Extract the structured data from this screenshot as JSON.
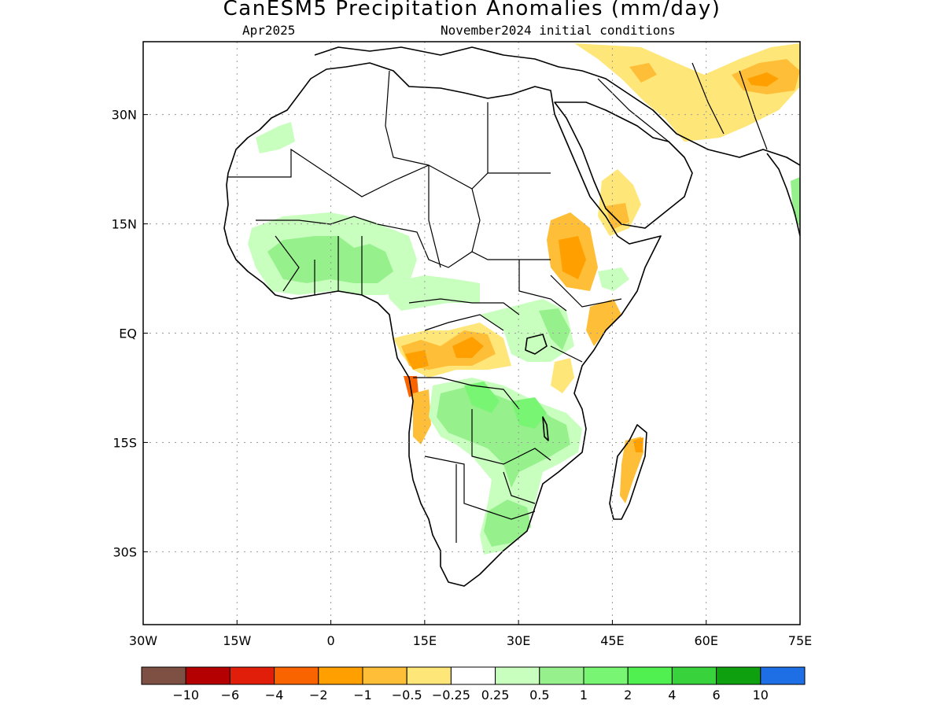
{
  "title": "CanESM5 Precipitation Anomalies (mm/day)",
  "subtitle_left": "Apr2025",
  "subtitle_right": "November2024 initial conditions",
  "map": {
    "lon_range": [
      -30,
      75
    ],
    "lat_range": [
      -40,
      40
    ],
    "lon_ticks": [
      {
        "value": -30,
        "label": "30W"
      },
      {
        "value": -15,
        "label": "15W"
      },
      {
        "value": 0,
        "label": "0"
      },
      {
        "value": 15,
        "label": "15E"
      },
      {
        "value": 30,
        "label": "30E"
      },
      {
        "value": 45,
        "label": "45E"
      },
      {
        "value": 60,
        "label": "60E"
      },
      {
        "value": 75,
        "label": "75E"
      }
    ],
    "lat_ticks": [
      {
        "value": 30,
        "label": "30N"
      },
      {
        "value": 15,
        "label": "15N"
      },
      {
        "value": 0,
        "label": "EQ"
      },
      {
        "value": -15,
        "label": "15S"
      },
      {
        "value": -30,
        "label": "30S"
      }
    ],
    "gridlines": "dotted"
  },
  "colorbar": {
    "colors": [
      "#7d5043",
      "#b40000",
      "#e01e0a",
      "#fa6400",
      "#ffa000",
      "#ffbe37",
      "#ffe678",
      "#ffffff",
      "#c8ffbe",
      "#96f08c",
      "#78f573",
      "#50f050",
      "#37d23c",
      "#0fa00f",
      "#1e6ee6"
    ],
    "labels": [
      "-10",
      "-6",
      "-4",
      "-2",
      "-1",
      "-0.5",
      "-0.25",
      "0.25",
      "0.5",
      "1",
      "2",
      "4",
      "6",
      "10"
    ]
  }
}
